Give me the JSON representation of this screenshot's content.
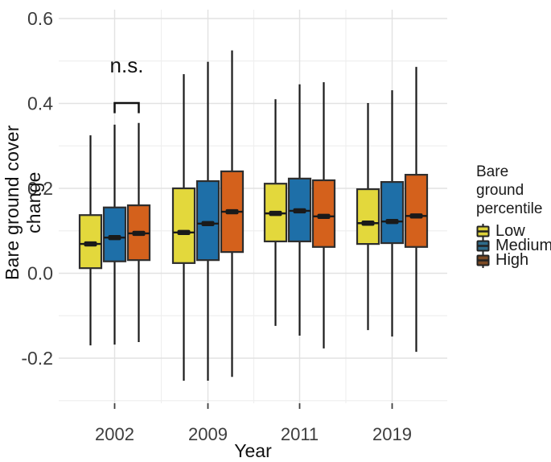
{
  "figure": {
    "y_axis_title": "Bare ground cover change",
    "x_axis_title": "Year"
  },
  "legend": {
    "title_line1": "Bare ground",
    "title_line2": "percentile",
    "items": [
      {
        "label": "Low",
        "key_color": "#ddd23b"
      },
      {
        "label": "Medium",
        "key_color": "#2e6b8a"
      },
      {
        "label": "High",
        "key_color": "#7c4a24"
      }
    ]
  },
  "chart_data": {
    "type": "boxplot",
    "title": "",
    "xlabel": "Year",
    "ylabel": "Bare ground cover change",
    "categories": [
      "2002",
      "2009",
      "2011",
      "2019"
    ],
    "y_ticks": [
      {
        "v": 0.6,
        "label": "0.6"
      },
      {
        "v": 0.4,
        "label": "0.4"
      },
      {
        "v": 0.2,
        "label": "0.2"
      },
      {
        "v": 0.0,
        "label": "0.0"
      },
      {
        "v": -0.2,
        "label": "-0.2"
      }
    ],
    "y_minor_ticks": [
      0.5,
      0.3,
      0.1,
      -0.1,
      -0.3
    ],
    "ylim": [
      -0.3,
      0.615
    ],
    "grid": true,
    "legend_position": "right",
    "colors": {
      "box_border": "#2e2e2e",
      "whisker": "#1a1a1a",
      "median": "#1a1a1a",
      "grid_major": "#e2e2e2",
      "grid_minor": "#efefef",
      "tick": "#404040",
      "tick_label": "#3d3d3d",
      "annotation": "#111111"
    },
    "series": [
      {
        "name": "Low",
        "fill": "#e3d83c",
        "boxes": [
          {
            "whisker_low": -0.17,
            "q1": 0.012,
            "median": 0.069,
            "q3": 0.137,
            "whisker_high": 0.325
          },
          {
            "whisker_low": -0.253,
            "q1": 0.024,
            "median": 0.096,
            "q3": 0.2,
            "whisker_high": 0.469
          },
          {
            "whisker_low": -0.124,
            "q1": 0.075,
            "median": 0.141,
            "q3": 0.211,
            "whisker_high": 0.41
          },
          {
            "whisker_low": -0.134,
            "q1": 0.069,
            "median": 0.118,
            "q3": 0.198,
            "whisker_high": 0.401
          }
        ]
      },
      {
        "name": "Medium",
        "fill": "#1e6fa8",
        "boxes": [
          {
            "whisker_low": -0.168,
            "q1": 0.028,
            "median": 0.084,
            "q3": 0.155,
            "whisker_high": 0.35
          },
          {
            "whisker_low": -0.253,
            "q1": 0.031,
            "median": 0.117,
            "q3": 0.217,
            "whisker_high": 0.498
          },
          {
            "whisker_low": -0.147,
            "q1": 0.075,
            "median": 0.147,
            "q3": 0.223,
            "whisker_high": 0.445
          },
          {
            "whisker_low": -0.149,
            "q1": 0.071,
            "median": 0.122,
            "q3": 0.215,
            "whisker_high": 0.431
          }
        ]
      },
      {
        "name": "High",
        "fill": "#d4611c",
        "boxes": [
          {
            "whisker_low": -0.162,
            "q1": 0.031,
            "median": 0.094,
            "q3": 0.16,
            "whisker_high": 0.354
          },
          {
            "whisker_low": -0.244,
            "q1": 0.05,
            "median": 0.145,
            "q3": 0.24,
            "whisker_high": 0.525
          },
          {
            "whisker_low": -0.177,
            "q1": 0.062,
            "median": 0.134,
            "q3": 0.219,
            "whisker_high": 0.45
          },
          {
            "whisker_low": -0.185,
            "q1": 0.062,
            "median": 0.135,
            "q3": 0.232,
            "whisker_high": 0.486
          }
        ]
      }
    ],
    "annotation": {
      "text": "n.s.",
      "year": "2002",
      "spans_series": [
        "Medium",
        "High"
      ],
      "bracket_top_value": 0.401,
      "bracket_arm_bottom_value": 0.377,
      "text_center_value": 0.49
    }
  }
}
